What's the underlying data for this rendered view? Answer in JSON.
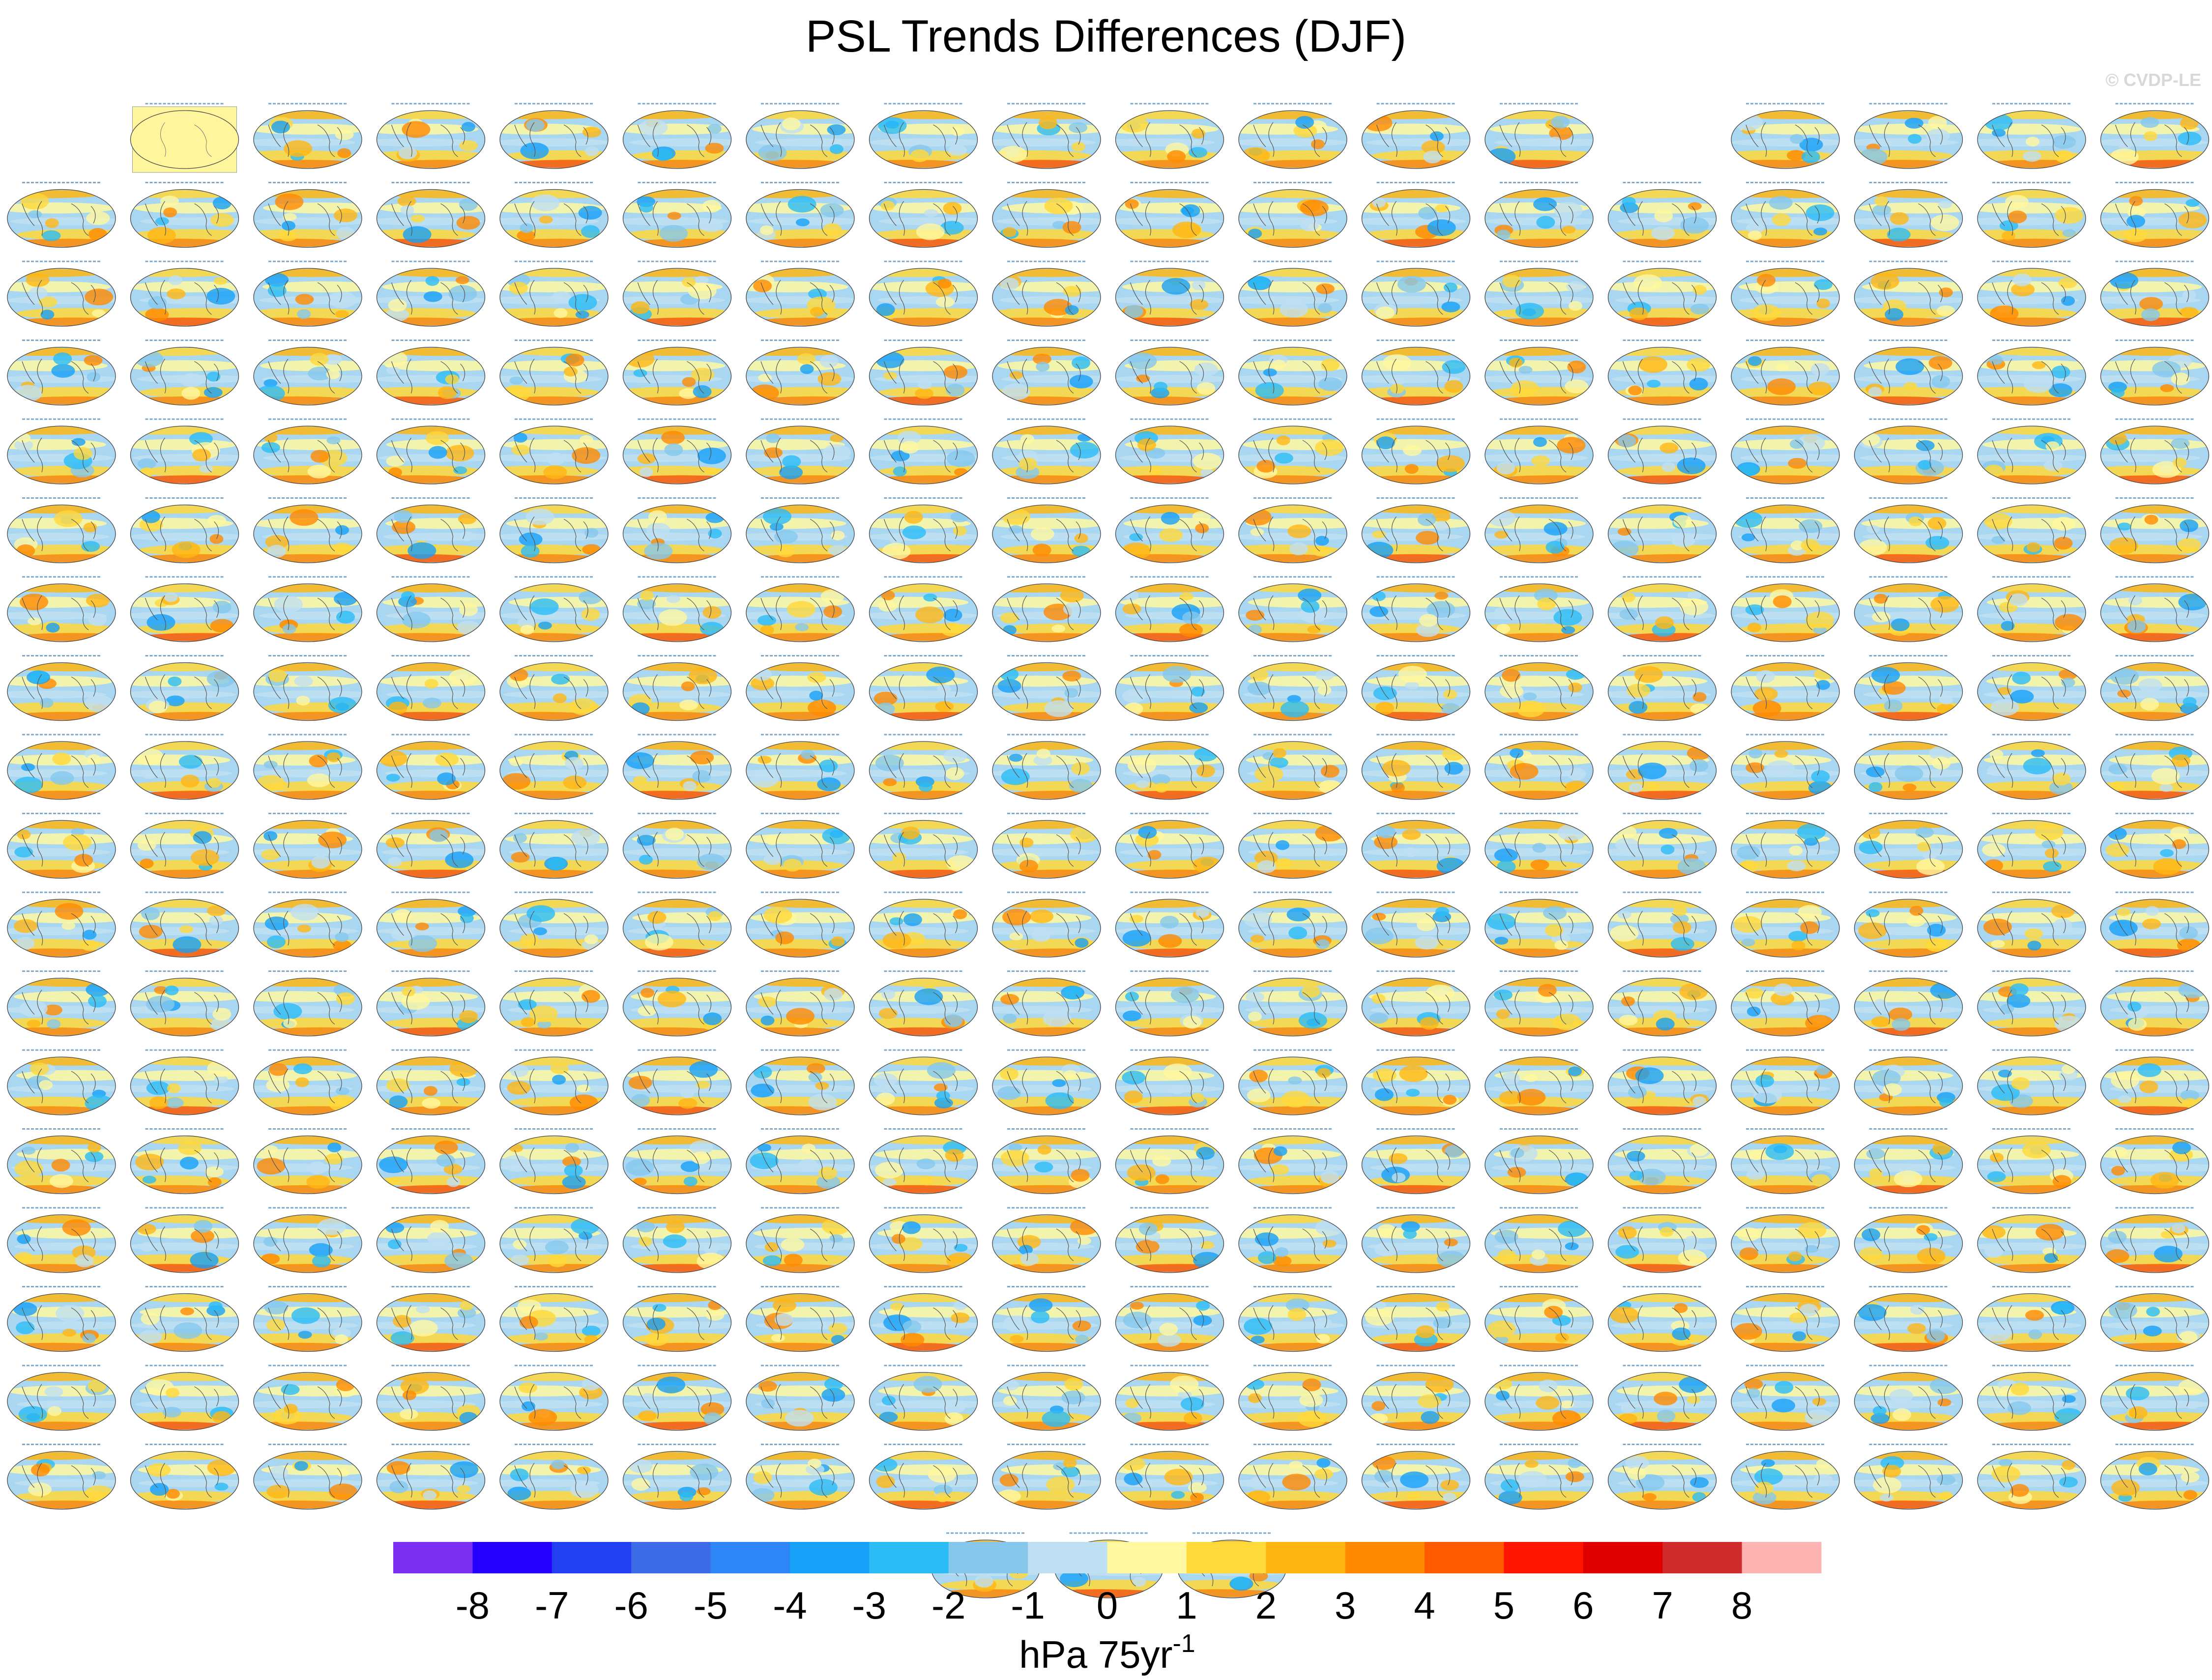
{
  "title": "PSL Trends Differences (DJF)",
  "credit": "© CVDP-LE",
  "chart_data": {
    "type": "heatmap",
    "description_fields": {
      "panel_layout": "grid of global map panels, 18 columns by 18 rows plus a final row of 3",
      "projection": "global elliptical map",
      "variable": "sea level pressure trend differences",
      "season": "DJF"
    },
    "colorbar": {
      "tick_labels": [
        "-8",
        "-7",
        "-6",
        "-5",
        "-4",
        "-3",
        "-2",
        "-1",
        "0",
        "1",
        "2",
        "3",
        "4",
        "5",
        "6",
        "7",
        "8"
      ],
      "colors": [
        "#7b2ff0",
        "#2600ff",
        "#2340f0",
        "#3d6ae6",
        "#2e85f5",
        "#16a0f7",
        "#2bbcf6",
        "#85c8ec",
        "#bfe0f2",
        "#fff8a0",
        "#ffd83a",
        "#ffb613",
        "#ff8a00",
        "#ff5a00",
        "#ff1400",
        "#e00000",
        "#cf2b2b",
        "#ffb4b4"
      ],
      "units_text": "hPa 75yr",
      "units_superscript": "-1"
    },
    "panels": {
      "columns": 18,
      "rows": 18,
      "empty_cells": [
        [
          0,
          0
        ],
        [
          13,
          0
        ]
      ],
      "last_row_count": 3,
      "reference_panel_color": "#fff59d"
    }
  }
}
